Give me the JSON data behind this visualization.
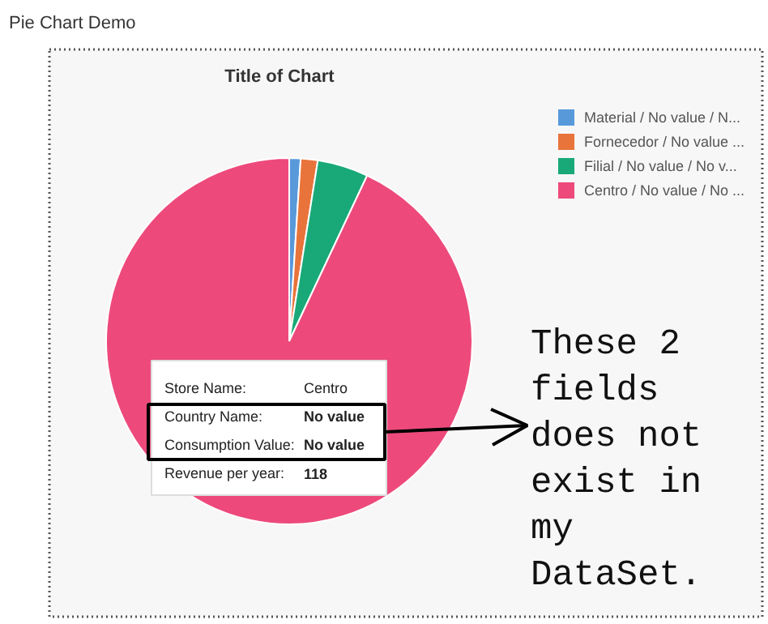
{
  "chart_data": {
    "type": "pie",
    "title": "Pie Chart Demo",
    "subtitle": "Title of Chart",
    "categories": [
      "Material / No value / N...",
      "Fornecedor / No value ...",
      "Filial / No value / No v...",
      "Centro / No value / No ..."
    ],
    "values": [
      1,
      1.5,
      4.5,
      93
    ],
    "colors": [
      "#5899da",
      "#e8743b",
      "#19a979",
      "#ed4a7b"
    ],
    "legend": "top right",
    "annotations": [
      "Store Name:",
      "Centro",
      "Country Name:",
      "No value",
      "Consumption Value:",
      "No value",
      "Revenue per year:",
      "118",
      "These 2\nfields\ndoes not\nexist in\nmy\nDataSet."
    ]
  }
}
